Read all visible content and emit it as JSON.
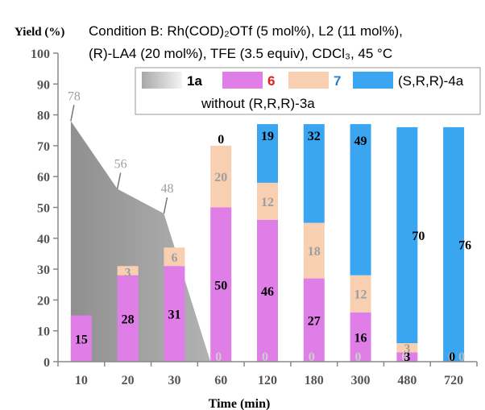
{
  "chart_data": {
    "type": "bar",
    "title_prefix": "Condition B",
    "title_line1": ": Rh(COD)₂OTf (5 mol%), L2 (11 mol%),",
    "title_line2": "(R)-LA4 (20 mol%), TFE (3.5 equiv), CDCl₃, 45 °C",
    "xlabel": "Time (min)",
    "ylabel": "Yield (%)",
    "ylim": [
      0,
      100
    ],
    "yticks": [
      0,
      10,
      20,
      30,
      40,
      50,
      60,
      70,
      80,
      90,
      100
    ],
    "categories": [
      "10",
      "20",
      "30",
      "60",
      "120",
      "180",
      "300",
      "480",
      "720"
    ],
    "series": [
      {
        "name": "6",
        "color": "#e07ee8",
        "label_color": "#000000",
        "values": [
          15,
          28,
          31,
          50,
          46,
          27,
          16,
          3,
          0
        ]
      },
      {
        "name": "7",
        "color": "#f8cfb1",
        "label_color": "#9e9e9e",
        "values": [
          0,
          3,
          6,
          20,
          12,
          18,
          12,
          3,
          0
        ]
      },
      {
        "name": "(S,R,R)-4a",
        "color": "#3aa6f2",
        "label_color": "#000000",
        "values": [
          0,
          0,
          0,
          0,
          19,
          32,
          49,
          70,
          76
        ]
      }
    ],
    "area_series": {
      "name": "1a",
      "values": [
        78,
        56,
        48,
        0,
        0,
        0,
        0,
        0,
        0
      ],
      "label_color": "#9e9e9e"
    },
    "legend": {
      "placement": "top-right",
      "items": [
        "1a",
        "6",
        "7",
        "(S,R,R)-4a"
      ],
      "note": "without (R,R,R)-3a"
    },
    "grid": false
  }
}
